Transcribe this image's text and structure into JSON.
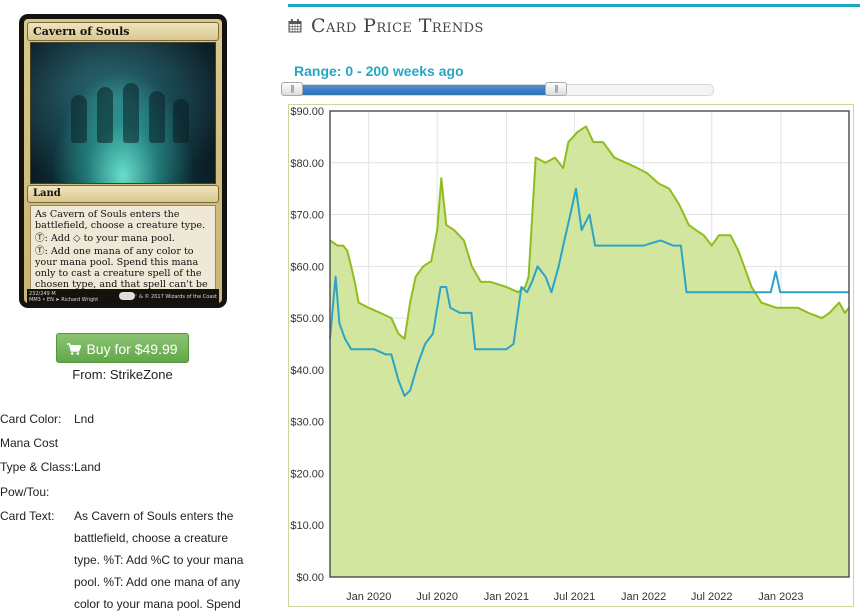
{
  "card": {
    "name": "Cavern of Souls",
    "type_line": "Land",
    "rules": [
      "As Cavern of Souls enters the battlefield, choose a creature type.",
      "Ⓣ: Add ◇ to your mana pool.",
      "Ⓣ: Add one mana of any color to your mana pool. Spend this mana only to cast a creature spell of the chosen type, and that spell can't be countered."
    ],
    "collector": "232/249 M",
    "set_line": "MM3 • EN ➤ Richard Wright",
    "copyright": "™ & © 2017 Wizards of the Coast"
  },
  "buy": {
    "label": "Buy for $49.99",
    "icon": "shopping-cart-icon",
    "color": "#6aad52"
  },
  "from": "From: StrikeZone",
  "attributes": {
    "color_label": "Card Color:",
    "color_value": "Lnd",
    "cost_label": "Mana Cost",
    "cost_value": "",
    "type_label": "Type & Class:",
    "type_value": "Land",
    "pt_label": "Pow/Tou:",
    "pt_value": "",
    "text_label": "Card Text:",
    "text_value": "As Cavern of Souls enters the battlefield, choose a creature type. %T: Add %C to your mana pool. %T: Add one mana of any color to your mana pool. Spend"
  },
  "trends": {
    "title": "Card Price Trends",
    "icon": "calendar-icon",
    "accent": "#1ea6c6"
  },
  "range": {
    "label": "Range: 0 - 200 weeks ago",
    "min_weeks": 0,
    "max_weeks": 200,
    "fill_fraction": 0.635
  },
  "chart_data": {
    "type": "area",
    "title": "",
    "xlabel": "",
    "ylabel": "",
    "ylim": [
      0,
      90
    ],
    "xlim": [
      "2019-09-20",
      "2023-07-01"
    ],
    "grid": true,
    "y_ticks": [
      "$0.00",
      "$10.00",
      "$20.00",
      "$30.00",
      "$40.00",
      "$50.00",
      "$60.00",
      "$70.00",
      "$80.00",
      "$90.00"
    ],
    "x_ticks": [
      {
        "label": "Jan 2020",
        "date": "2020-01-01"
      },
      {
        "label": "Jul 2020",
        "date": "2020-07-01"
      },
      {
        "label": "Jan 2021",
        "date": "2021-01-01"
      },
      {
        "label": "Jul 2021",
        "date": "2021-07-01"
      },
      {
        "label": "Jan 2022",
        "date": "2022-01-01"
      },
      {
        "label": "Jul 2022",
        "date": "2022-07-01"
      },
      {
        "label": "Jan 2023",
        "date": "2023-01-01"
      }
    ],
    "series": [
      {
        "color": "#8fbc1e",
        "fill": "#d3e69f",
        "fill_area": true,
        "points": [
          [
            "2019-09-20",
            65
          ],
          [
            "2019-10-10",
            64
          ],
          [
            "2019-10-25",
            64
          ],
          [
            "2019-11-05",
            63
          ],
          [
            "2019-11-15",
            60
          ],
          [
            "2019-11-25",
            57
          ],
          [
            "2019-12-05",
            53
          ],
          [
            "2020-01-01",
            52
          ],
          [
            "2020-02-01",
            51
          ],
          [
            "2020-03-01",
            50
          ],
          [
            "2020-03-20",
            47
          ],
          [
            "2020-04-05",
            46
          ],
          [
            "2020-04-20",
            53
          ],
          [
            "2020-05-05",
            58
          ],
          [
            "2020-05-25",
            60
          ],
          [
            "2020-06-15",
            61
          ],
          [
            "2020-07-01",
            67
          ],
          [
            "2020-07-12",
            77
          ],
          [
            "2020-07-25",
            68
          ],
          [
            "2020-08-15",
            67
          ],
          [
            "2020-09-10",
            65
          ],
          [
            "2020-10-01",
            60
          ],
          [
            "2020-10-25",
            57
          ],
          [
            "2020-11-20",
            57
          ],
          [
            "2021-01-01",
            56
          ],
          [
            "2021-02-01",
            55
          ],
          [
            "2021-02-20",
            56
          ],
          [
            "2021-03-01",
            58
          ],
          [
            "2021-03-20",
            81
          ],
          [
            "2021-04-15",
            80
          ],
          [
            "2021-05-10",
            81
          ],
          [
            "2021-06-01",
            79
          ],
          [
            "2021-06-15",
            84
          ],
          [
            "2021-07-10",
            86
          ],
          [
            "2021-08-01",
            87
          ],
          [
            "2021-08-20",
            84
          ],
          [
            "2021-09-15",
            84
          ],
          [
            "2021-10-15",
            81
          ],
          [
            "2021-11-15",
            80
          ],
          [
            "2021-12-15",
            79
          ],
          [
            "2022-01-10",
            78
          ],
          [
            "2022-02-10",
            76
          ],
          [
            "2022-03-10",
            75
          ],
          [
            "2022-04-05",
            72
          ],
          [
            "2022-05-01",
            68
          ],
          [
            "2022-05-20",
            67
          ],
          [
            "2022-06-10",
            66
          ],
          [
            "2022-07-01",
            64
          ],
          [
            "2022-07-20",
            66
          ],
          [
            "2022-08-20",
            66
          ],
          [
            "2022-09-10",
            63
          ],
          [
            "2022-09-25",
            60
          ],
          [
            "2022-10-15",
            56
          ],
          [
            "2022-11-10",
            53
          ],
          [
            "2022-12-20",
            52
          ],
          [
            "2023-02-15",
            52
          ],
          [
            "2023-03-15",
            51
          ],
          [
            "2023-04-20",
            50
          ],
          [
            "2023-05-10",
            51
          ],
          [
            "2023-06-05",
            53
          ],
          [
            "2023-06-20",
            51
          ],
          [
            "2023-07-01",
            52
          ]
        ]
      },
      {
        "color": "#2ba4c6",
        "fill_area": false,
        "points": [
          [
            "2019-09-20",
            46
          ],
          [
            "2019-10-05",
            58
          ],
          [
            "2019-10-15",
            49
          ],
          [
            "2019-10-30",
            46
          ],
          [
            "2019-11-15",
            44
          ],
          [
            "2019-12-15",
            44
          ],
          [
            "2020-01-15",
            44
          ],
          [
            "2020-02-15",
            43
          ],
          [
            "2020-03-01",
            43
          ],
          [
            "2020-03-20",
            38
          ],
          [
            "2020-04-05",
            35
          ],
          [
            "2020-04-20",
            36
          ],
          [
            "2020-05-10",
            41
          ],
          [
            "2020-05-30",
            45
          ],
          [
            "2020-06-20",
            47
          ],
          [
            "2020-07-10",
            56
          ],
          [
            "2020-07-25",
            56
          ],
          [
            "2020-08-05",
            52
          ],
          [
            "2020-08-30",
            51
          ],
          [
            "2020-09-30",
            51
          ],
          [
            "2020-10-10",
            44
          ],
          [
            "2020-11-10",
            44
          ],
          [
            "2021-01-01",
            44
          ],
          [
            "2021-01-20",
            45
          ],
          [
            "2021-02-10",
            56
          ],
          [
            "2021-02-25",
            55
          ],
          [
            "2021-03-10",
            57
          ],
          [
            "2021-03-25",
            60
          ],
          [
            "2021-04-15",
            58
          ],
          [
            "2021-05-01",
            55
          ],
          [
            "2021-05-20",
            60
          ],
          [
            "2021-06-01",
            64
          ],
          [
            "2021-06-20",
            70
          ],
          [
            "2021-07-05",
            75
          ],
          [
            "2021-07-20",
            67
          ],
          [
            "2021-08-10",
            70
          ],
          [
            "2021-08-25",
            64
          ],
          [
            "2021-10-10",
            64
          ],
          [
            "2021-12-01",
            64
          ],
          [
            "2022-01-01",
            64
          ],
          [
            "2022-02-15",
            65
          ],
          [
            "2022-03-20",
            64
          ],
          [
            "2022-04-10",
            64
          ],
          [
            "2022-04-25",
            55
          ],
          [
            "2022-06-15",
            55
          ],
          [
            "2022-08-15",
            55
          ],
          [
            "2022-10-10",
            55
          ],
          [
            "2022-11-01",
            55
          ],
          [
            "2022-12-05",
            55
          ],
          [
            "2022-12-18",
            59
          ],
          [
            "2022-12-30",
            55
          ],
          [
            "2023-03-15",
            55
          ],
          [
            "2023-07-01",
            55
          ]
        ]
      }
    ]
  }
}
